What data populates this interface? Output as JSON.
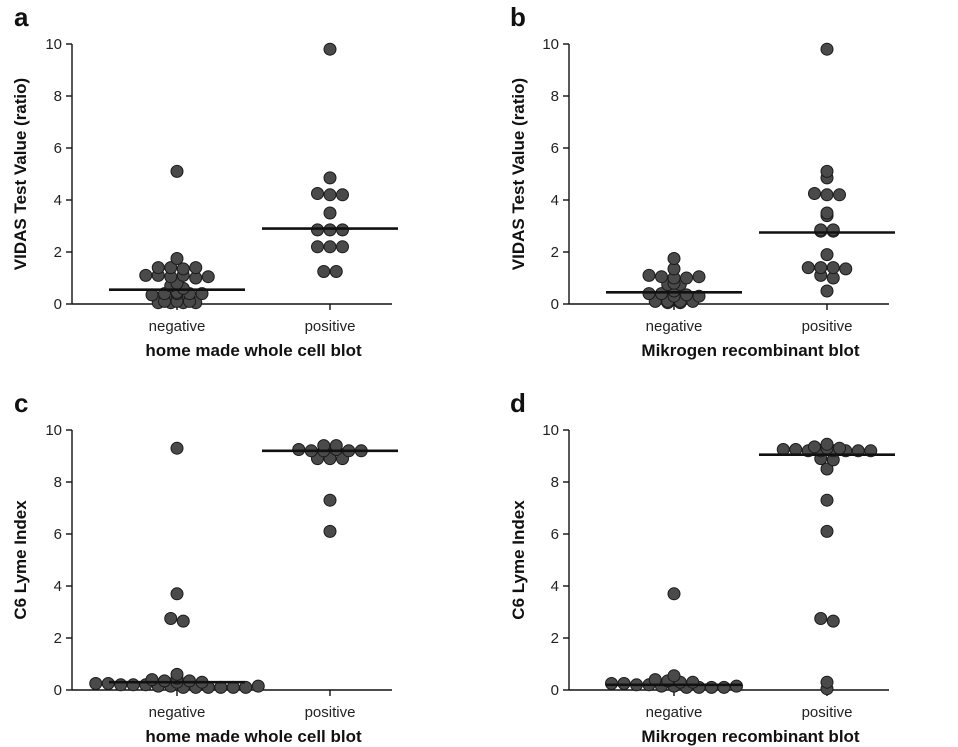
{
  "chart_data": [
    {
      "type": "scatter",
      "panel": "a",
      "ylabel": "VIDAS Test Value (ratio)",
      "xlabel": "home made whole cell blot",
      "categories": [
        "negative",
        "positive"
      ],
      "ylim": [
        0,
        10
      ],
      "yticks": [
        0,
        2,
        4,
        6,
        8,
        10
      ],
      "series": [
        {
          "values": [
            5.1,
            1.75,
            1.4,
            1.4,
            1.35,
            1.4,
            1.1,
            1.1,
            1.05,
            1.1,
            1.0,
            1.05,
            0.8,
            0.7,
            0.6,
            0.35,
            0.4,
            0.4,
            0.4,
            0.45,
            0.4,
            0.1,
            0.1,
            0.05,
            0.05,
            0.1,
            0.05,
            0.05
          ],
          "median": 0.55
        },
        {
          "values": [
            9.8,
            4.85,
            4.25,
            4.2,
            4.2,
            3.5,
            2.85,
            2.85,
            2.85,
            2.2,
            2.2,
            2.2,
            1.25,
            1.25
          ],
          "median": 2.9
        }
      ]
    },
    {
      "type": "scatter",
      "panel": "b",
      "ylabel": "VIDAS Test Value (ratio)",
      "xlabel": "Mikrogen recombinant blot",
      "categories": [
        "negative",
        "positive"
      ],
      "ylim": [
        0,
        10
      ],
      "yticks": [
        0,
        2,
        4,
        6,
        8,
        10
      ],
      "series": [
        {
          "values": [
            1.75,
            1.35,
            1.1,
            1.05,
            1.0,
            1.0,
            1.05,
            0.8,
            0.75,
            0.75,
            0.5,
            0.4,
            0.4,
            0.3,
            0.35,
            0.3,
            0.1,
            0.1,
            0.05,
            0.05,
            0.1,
            0.1
          ],
          "median": 0.45
        },
        {
          "values": [
            9.8,
            5.1,
            4.85,
            4.25,
            4.2,
            4.2,
            3.5,
            3.4,
            2.85,
            2.85,
            2.8,
            2.8,
            1.9,
            1.4,
            1.4,
            1.4,
            1.35,
            1.1,
            1.0,
            0.5
          ],
          "median": 2.75
        }
      ]
    },
    {
      "type": "scatter",
      "panel": "c",
      "ylabel": "C6 Lyme Index",
      "xlabel": "home made whole cell blot",
      "categories": [
        "negative",
        "positive"
      ],
      "ylim": [
        0,
        10
      ],
      "yticks": [
        0,
        2,
        4,
        6,
        8,
        10
      ],
      "series": [
        {
          "values": [
            9.3,
            3.7,
            2.75,
            2.65,
            0.6,
            0.45,
            0.4,
            0.35,
            0.3,
            0.35,
            0.3,
            0.25,
            0.25,
            0.2,
            0.2,
            0.2,
            0.15,
            0.15,
            0.1,
            0.1,
            0.1,
            0.1,
            0.1,
            0.1,
            0.15
          ],
          "median": 0.3
        },
        {
          "values": [
            9.4,
            9.4,
            9.25,
            9.2,
            9.2,
            9.25,
            9.2,
            9.2,
            8.9,
            8.9,
            8.9,
            7.3,
            6.1
          ],
          "median": 9.2
        }
      ]
    },
    {
      "type": "scatter",
      "panel": "d",
      "ylabel": "C6 Lyme Index",
      "xlabel": "Mikrogen recombinant blot",
      "categories": [
        "negative",
        "positive"
      ],
      "ylim": [
        0,
        10
      ],
      "yticks": [
        0,
        2,
        4,
        6,
        8,
        10
      ],
      "series": [
        {
          "values": [
            3.7,
            0.55,
            0.4,
            0.35,
            0.3,
            0.3,
            0.25,
            0.25,
            0.2,
            0.2,
            0.15,
            0.15,
            0.1,
            0.1,
            0.1,
            0.1,
            0.15
          ],
          "median": 0.2
        },
        {
          "values": [
            9.45,
            9.35,
            9.3,
            9.3,
            9.25,
            9.25,
            9.2,
            9.2,
            9.2,
            9.2,
            9.2,
            9.2,
            8.9,
            8.85,
            8.5,
            7.3,
            6.1,
            2.75,
            2.65,
            0.3,
            0.05
          ],
          "median": 9.05
        }
      ]
    }
  ]
}
